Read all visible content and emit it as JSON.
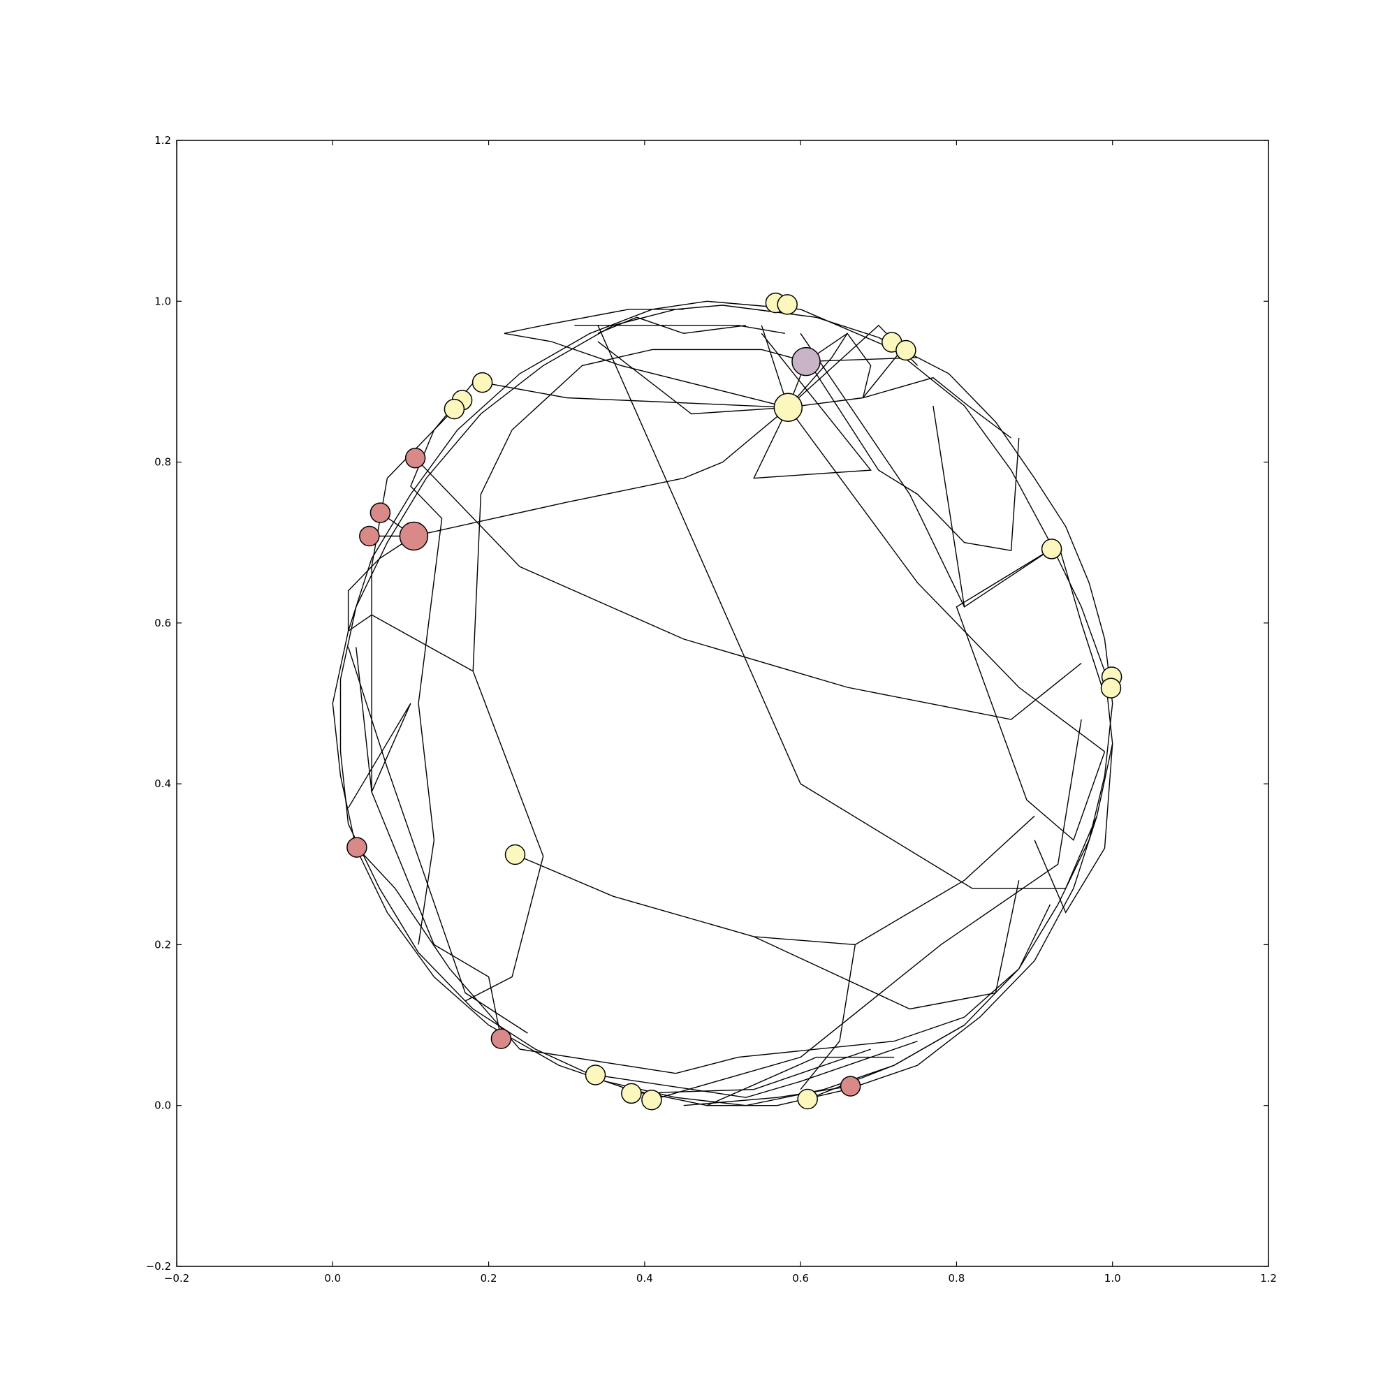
{
  "chart_data": {
    "type": "scatter",
    "title": "",
    "xlabel": "",
    "ylabel": "",
    "xlim": [
      -0.2,
      1.2
    ],
    "ylim": [
      -0.2,
      1.2
    ],
    "xticks": [
      "−0.2",
      "0.0",
      "0.2",
      "0.4",
      "0.6",
      "0.8",
      "1.0",
      "1.2"
    ],
    "yticks": [
      "−0.2",
      "0.0",
      "0.2",
      "0.4",
      "0.6",
      "0.8",
      "1.0",
      "1.2"
    ],
    "grid": false,
    "colors": {
      "yellow": "#fbf7bd",
      "red": "#d98a88",
      "purple": "#c9b3c7",
      "edge": "#000000"
    },
    "nodes": [
      {
        "x": 0.568,
        "y": 0.998,
        "size": "small",
        "color": "yellow"
      },
      {
        "x": 0.583,
        "y": 0.996,
        "size": "small",
        "color": "yellow"
      },
      {
        "x": 0.717,
        "y": 0.949,
        "size": "small",
        "color": "yellow"
      },
      {
        "x": 0.735,
        "y": 0.939,
        "size": "small",
        "color": "yellow"
      },
      {
        "x": 0.607,
        "y": 0.925,
        "size": "large",
        "color": "purple"
      },
      {
        "x": 0.584,
        "y": 0.868,
        "size": "large",
        "color": "yellow"
      },
      {
        "x": 0.192,
        "y": 0.899,
        "size": "small",
        "color": "yellow"
      },
      {
        "x": 0.166,
        "y": 0.877,
        "size": "small",
        "color": "yellow"
      },
      {
        "x": 0.156,
        "y": 0.866,
        "size": "small",
        "color": "yellow"
      },
      {
        "x": 0.106,
        "y": 0.805,
        "size": "small",
        "color": "red"
      },
      {
        "x": 0.061,
        "y": 0.737,
        "size": "small",
        "color": "red"
      },
      {
        "x": 0.047,
        "y": 0.708,
        "size": "small",
        "color": "red"
      },
      {
        "x": 0.104,
        "y": 0.708,
        "size": "large",
        "color": "red"
      },
      {
        "x": 0.922,
        "y": 0.692,
        "size": "small",
        "color": "yellow"
      },
      {
        "x": 0.999,
        "y": 0.533,
        "size": "small",
        "color": "yellow"
      },
      {
        "x": 0.998,
        "y": 0.519,
        "size": "small",
        "color": "yellow"
      },
      {
        "x": 0.031,
        "y": 0.321,
        "size": "small",
        "color": "red"
      },
      {
        "x": 0.234,
        "y": 0.312,
        "size": "small",
        "color": "yellow"
      },
      {
        "x": 0.216,
        "y": 0.083,
        "size": "small",
        "color": "red"
      },
      {
        "x": 0.337,
        "y": 0.038,
        "size": "small",
        "color": "yellow"
      },
      {
        "x": 0.383,
        "y": 0.015,
        "size": "small",
        "color": "yellow"
      },
      {
        "x": 0.409,
        "y": 0.007,
        "size": "small",
        "color": "yellow"
      },
      {
        "x": 0.609,
        "y": 0.008,
        "size": "small",
        "color": "yellow"
      },
      {
        "x": 0.664,
        "y": 0.024,
        "size": "small",
        "color": "red"
      }
    ],
    "edges": [
      [
        [
          0.48,
          1.0
        ],
        [
          0.6,
          0.99
        ],
        [
          0.72,
          0.94
        ],
        [
          0.81,
          0.87
        ],
        [
          0.87,
          0.79
        ],
        [
          0.92,
          0.7
        ],
        [
          0.96,
          0.62
        ],
        [
          0.99,
          0.54
        ],
        [
          1.0,
          0.45
        ],
        [
          0.98,
          0.36
        ],
        [
          0.95,
          0.27
        ],
        [
          0.9,
          0.18
        ],
        [
          0.83,
          0.11
        ],
        [
          0.75,
          0.05
        ],
        [
          0.66,
          0.02
        ],
        [
          0.57,
          0.0
        ],
        [
          0.48,
          0.0
        ],
        [
          0.38,
          0.02
        ],
        [
          0.29,
          0.05
        ],
        [
          0.2,
          0.1
        ],
        [
          0.13,
          0.16
        ],
        [
          0.07,
          0.24
        ],
        [
          0.03,
          0.32
        ],
        [
          0.01,
          0.41
        ],
        [
          0.0,
          0.5
        ],
        [
          0.02,
          0.59
        ],
        [
          0.05,
          0.68
        ],
        [
          0.1,
          0.76
        ],
        [
          0.16,
          0.84
        ],
        [
          0.24,
          0.91
        ],
        [
          0.33,
          0.96
        ],
        [
          0.41,
          0.99
        ],
        [
          0.48,
          1.0
        ]
      ],
      [
        [
          0.5,
          0.995
        ],
        [
          0.62,
          0.98
        ],
        [
          0.7,
          0.955
        ],
        [
          0.79,
          0.91
        ],
        [
          0.85,
          0.85
        ],
        [
          0.9,
          0.78
        ],
        [
          0.94,
          0.72
        ],
        [
          0.97,
          0.65
        ],
        [
          0.99,
          0.58
        ],
        [
          1.0,
          0.5
        ],
        [
          0.99,
          0.41
        ],
        [
          0.97,
          0.33
        ],
        [
          0.93,
          0.25
        ],
        [
          0.88,
          0.17
        ],
        [
          0.81,
          0.1
        ],
        [
          0.72,
          0.05
        ],
        [
          0.63,
          0.02
        ],
        [
          0.53,
          0.0
        ],
        [
          0.44,
          0.01
        ],
        [
          0.35,
          0.03
        ],
        [
          0.26,
          0.07
        ],
        [
          0.18,
          0.12
        ],
        [
          0.11,
          0.19
        ],
        [
          0.06,
          0.27
        ],
        [
          0.02,
          0.35
        ],
        [
          0.01,
          0.44
        ],
        [
          0.01,
          0.53
        ],
        [
          0.03,
          0.62
        ],
        [
          0.07,
          0.7
        ],
        [
          0.12,
          0.78
        ],
        [
          0.19,
          0.86
        ],
        [
          0.27,
          0.92
        ],
        [
          0.36,
          0.97
        ],
        [
          0.44,
          0.99
        ],
        [
          0.5,
          0.995
        ]
      ],
      [
        [
          0.584,
          0.868
        ],
        [
          0.607,
          0.925
        ]
      ],
      [
        [
          0.584,
          0.868
        ],
        [
          0.68,
          0.88
        ],
        [
          0.77,
          0.905
        ],
        [
          0.815,
          0.87
        ],
        [
          0.87,
          0.83
        ]
      ],
      [
        [
          0.584,
          0.868
        ],
        [
          0.3,
          0.88
        ],
        [
          0.192,
          0.899
        ]
      ],
      [
        [
          0.584,
          0.868
        ],
        [
          0.37,
          0.92
        ],
        [
          0.28,
          0.95
        ],
        [
          0.22,
          0.96
        ]
      ],
      [
        [
          0.584,
          0.868
        ],
        [
          0.46,
          0.86
        ],
        [
          0.34,
          0.95
        ]
      ],
      [
        [
          0.584,
          0.868
        ],
        [
          0.7,
          0.97
        ],
        [
          0.75,
          0.92
        ]
      ],
      [
        [
          0.584,
          0.868
        ],
        [
          0.64,
          0.93
        ],
        [
          0.66,
          0.96
        ]
      ],
      [
        [
          0.584,
          0.868
        ],
        [
          0.55,
          0.97
        ]
      ],
      [
        [
          0.584,
          0.868
        ],
        [
          0.5,
          0.8
        ],
        [
          0.45,
          0.78
        ],
        [
          0.3,
          0.75
        ],
        [
          0.104,
          0.708
        ]
      ],
      [
        [
          0.584,
          0.868
        ],
        [
          0.75,
          0.65
        ],
        [
          0.88,
          0.52
        ],
        [
          0.99,
          0.44
        ]
      ],
      [
        [
          0.584,
          0.868
        ],
        [
          0.54,
          0.78
        ],
        [
          0.69,
          0.79
        ],
        [
          0.55,
          0.96
        ]
      ],
      [
        [
          0.607,
          0.925
        ],
        [
          0.55,
          0.94
        ],
        [
          0.41,
          0.94
        ],
        [
          0.32,
          0.92
        ],
        [
          0.23,
          0.84
        ],
        [
          0.19,
          0.76
        ],
        [
          0.18,
          0.54
        ],
        [
          0.27,
          0.31
        ],
        [
          0.23,
          0.16
        ],
        [
          0.17,
          0.13
        ]
      ],
      [
        [
          0.607,
          0.925
        ],
        [
          0.75,
          0.93
        ]
      ],
      [
        [
          0.607,
          0.925
        ],
        [
          0.66,
          0.96
        ],
        [
          0.69,
          0.92
        ],
        [
          0.68,
          0.88
        ],
        [
          0.73,
          0.94
        ]
      ],
      [
        [
          0.6,
          0.94
        ],
        [
          0.7,
          0.79
        ],
        [
          0.75,
          0.76
        ],
        [
          0.81,
          0.7
        ],
        [
          0.87,
          0.69
        ],
        [
          0.88,
          0.83
        ]
      ],
      [
        [
          0.53,
          0.97
        ],
        [
          0.45,
          0.96
        ],
        [
          0.39,
          0.98
        ],
        [
          0.34,
          0.96
        ]
      ],
      [
        [
          0.31,
          0.97
        ],
        [
          0.52,
          0.97
        ],
        [
          0.58,
          0.96
        ]
      ],
      [
        [
          0.22,
          0.96
        ],
        [
          0.27,
          0.97
        ],
        [
          0.38,
          0.99
        ],
        [
          0.45,
          0.99
        ]
      ],
      [
        [
          0.19,
          0.91
        ],
        [
          0.13,
          0.84
        ],
        [
          0.1,
          0.77
        ],
        [
          0.14,
          0.73
        ],
        [
          0.11,
          0.5
        ],
        [
          0.13,
          0.33
        ],
        [
          0.11,
          0.2
        ]
      ],
      [
        [
          0.156,
          0.866
        ],
        [
          0.07,
          0.78
        ],
        [
          0.05,
          0.67
        ],
        [
          0.05,
          0.5
        ],
        [
          0.05,
          0.39
        ],
        [
          0.1,
          0.5
        ],
        [
          0.02,
          0.37
        ]
      ],
      [
        [
          0.106,
          0.805
        ],
        [
          0.24,
          0.67
        ],
        [
          0.45,
          0.58
        ],
        [
          0.66,
          0.52
        ],
        [
          0.87,
          0.48
        ],
        [
          0.96,
          0.55
        ]
      ],
      [
        [
          0.061,
          0.737
        ],
        [
          0.104,
          0.708
        ]
      ],
      [
        [
          0.047,
          0.708
        ],
        [
          0.104,
          0.708
        ]
      ],
      [
        [
          0.104,
          0.708
        ],
        [
          0.06,
          0.68
        ],
        [
          0.02,
          0.64
        ],
        [
          0.02,
          0.59
        ],
        [
          0.05,
          0.61
        ],
        [
          0.18,
          0.54
        ]
      ],
      [
        [
          0.922,
          0.692
        ],
        [
          0.81,
          0.62
        ],
        [
          0.77,
          0.87
        ]
      ],
      [
        [
          0.922,
          0.692
        ],
        [
          0.8,
          0.62
        ],
        [
          0.89,
          0.38
        ],
        [
          0.95,
          0.33
        ],
        [
          0.99,
          0.44
        ]
      ],
      [
        [
          0.81,
          0.62
        ],
        [
          0.74,
          0.76
        ],
        [
          0.6,
          0.96
        ]
      ],
      [
        [
          0.34,
          0.97
        ],
        [
          0.6,
          0.4
        ],
        [
          0.82,
          0.27
        ],
        [
          0.94,
          0.27
        ],
        [
          0.98,
          0.36
        ]
      ],
      [
        [
          0.234,
          0.312
        ],
        [
          0.36,
          0.26
        ],
        [
          0.54,
          0.21
        ],
        [
          0.67,
          0.2
        ],
        [
          0.81,
          0.28
        ],
        [
          0.9,
          0.36
        ]
      ],
      [
        [
          0.54,
          0.21
        ],
        [
          0.74,
          0.12
        ],
        [
          0.85,
          0.14
        ],
        [
          0.88,
          0.28
        ]
      ],
      [
        [
          0.67,
          0.2
        ],
        [
          0.65,
          0.08
        ],
        [
          0.6,
          0.02
        ]
      ],
      [
        [
          0.03,
          0.57
        ],
        [
          0.05,
          0.39
        ],
        [
          0.13,
          0.2
        ],
        [
          0.2,
          0.16
        ],
        [
          0.216,
          0.083
        ]
      ],
      [
        [
          0.031,
          0.321
        ],
        [
          0.08,
          0.27
        ],
        [
          0.15,
          0.17
        ],
        [
          0.24,
          0.07
        ]
      ],
      [
        [
          0.02,
          0.57
        ],
        [
          0.07,
          0.42
        ],
        [
          0.17,
          0.14
        ],
        [
          0.25,
          0.09
        ]
      ],
      [
        [
          0.24,
          0.07
        ],
        [
          0.44,
          0.04
        ],
        [
          0.52,
          0.06
        ],
        [
          0.72,
          0.08
        ],
        [
          0.81,
          0.11
        ],
        [
          0.88,
          0.17
        ],
        [
          0.92,
          0.25
        ]
      ],
      [
        [
          0.337,
          0.038
        ],
        [
          0.53,
          0.01
        ],
        [
          0.6,
          0.03
        ],
        [
          0.75,
          0.08
        ]
      ],
      [
        [
          0.383,
          0.015
        ],
        [
          0.54,
          0.02
        ],
        [
          0.69,
          0.07
        ]
      ],
      [
        [
          0.409,
          0.007
        ],
        [
          0.6,
          0.06
        ],
        [
          0.78,
          0.2
        ],
        [
          0.93,
          0.3
        ],
        [
          0.96,
          0.48
        ]
      ],
      [
        [
          0.609,
          0.008
        ],
        [
          0.72,
          0.05
        ],
        [
          0.81,
          0.1
        ]
      ],
      [
        [
          0.664,
          0.024
        ],
        [
          0.57,
          0.01
        ],
        [
          0.45,
          0.0
        ]
      ],
      [
        [
          0.48,
          0.0
        ],
        [
          0.62,
          0.06
        ],
        [
          0.72,
          0.06
        ]
      ],
      [
        [
          0.9,
          0.33
        ],
        [
          0.94,
          0.24
        ],
        [
          0.99,
          0.32
        ],
        [
          1.0,
          0.45
        ]
      ],
      [
        [
          0.93,
          0.7
        ],
        [
          0.96,
          0.6
        ],
        [
          0.99,
          0.51
        ]
      ]
    ]
  }
}
